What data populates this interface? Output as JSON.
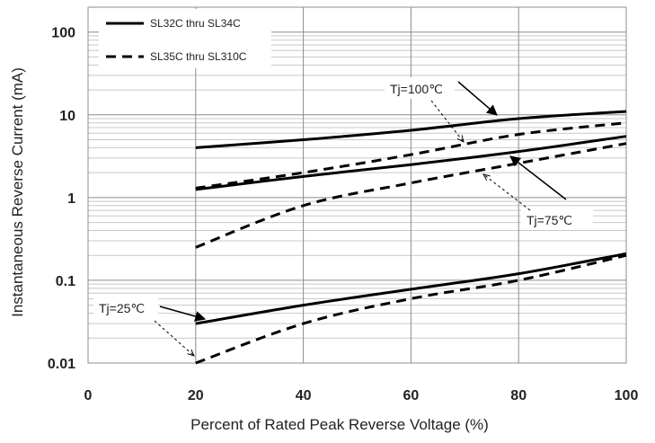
{
  "chart_data": {
    "type": "line",
    "title": "",
    "xlabel": "Percent of  Rated Peak Reverse Voltage (%)",
    "ylabel": "Instantaneous Reverse Current (mA)",
    "x_scale": "linear",
    "y_scale": "log",
    "xlim": [
      0,
      100
    ],
    "ylim": [
      0.01,
      200
    ],
    "x_ticks": [
      0,
      20,
      40,
      60,
      80,
      100
    ],
    "x_tick_labels": [
      "0",
      "20",
      "40",
      "60",
      "80",
      "100"
    ],
    "y_ticks": [
      0.01,
      0.1,
      1,
      10,
      100
    ],
    "y_tick_labels": [
      "0.01",
      "0.1",
      "1",
      "10",
      "100"
    ],
    "grid": true,
    "legend": {
      "placement": "top-left",
      "entries": [
        {
          "label": "SL32C thru SL34C",
          "style": "solid"
        },
        {
          "label": "SL35C thru SL310C",
          "style": "dashed"
        }
      ]
    },
    "series": [
      {
        "group": "SL32C thru SL34C",
        "condition": "Tj=100℃",
        "style": "solid",
        "x": [
          20,
          40,
          60,
          80,
          100
        ],
        "y": [
          4.0,
          5.0,
          6.5,
          9.0,
          11.0
        ]
      },
      {
        "group": "SL35C thru SL310C",
        "condition": "Tj=100℃",
        "style": "dashed",
        "x": [
          20,
          40,
          60,
          80,
          100
        ],
        "y": [
          1.3,
          2.0,
          3.3,
          5.8,
          8.0
        ]
      },
      {
        "group": "SL32C thru SL34C",
        "condition": "Tj=75℃",
        "style": "solid",
        "x": [
          20,
          40,
          60,
          80,
          100
        ],
        "y": [
          1.25,
          1.8,
          2.5,
          3.6,
          5.5
        ]
      },
      {
        "group": "SL35C thru SL310C",
        "condition": "Tj=75℃",
        "style": "dashed",
        "x": [
          20,
          40,
          60,
          80,
          100
        ],
        "y": [
          0.25,
          0.8,
          1.5,
          2.6,
          4.5
        ]
      },
      {
        "group": "SL32C thru SL34C",
        "condition": "Tj=25℃",
        "style": "solid",
        "x": [
          20,
          40,
          60,
          80,
          100
        ],
        "y": [
          0.03,
          0.05,
          0.078,
          0.12,
          0.21
        ]
      },
      {
        "group": "SL35C thru SL310C",
        "condition": "Tj=25℃",
        "style": "dashed",
        "x": [
          20,
          40,
          60,
          80,
          100
        ],
        "y": [
          0.01,
          0.03,
          0.06,
          0.1,
          0.2
        ]
      }
    ],
    "annotations": [
      {
        "text": "Tj=100℃",
        "points_to": [
          "SL32C thru SL34C Tj=100℃",
          "SL35C thru SL310C Tj=100℃"
        ]
      },
      {
        "text": "Tj=75℃",
        "points_to": [
          "SL32C thru SL34C Tj=75℃",
          "SL35C thru SL310C Tj=75℃"
        ]
      },
      {
        "text": "Tj=25℃",
        "points_to": [
          "SL32C thru SL34C Tj=25℃",
          "SL35C thru SL310C Tj=25℃"
        ]
      }
    ],
    "colors": {
      "line": "#000000",
      "major_grid": "#8c8c8c",
      "minor_grid": "#c8c8c8",
      "text": "#222222"
    }
  }
}
